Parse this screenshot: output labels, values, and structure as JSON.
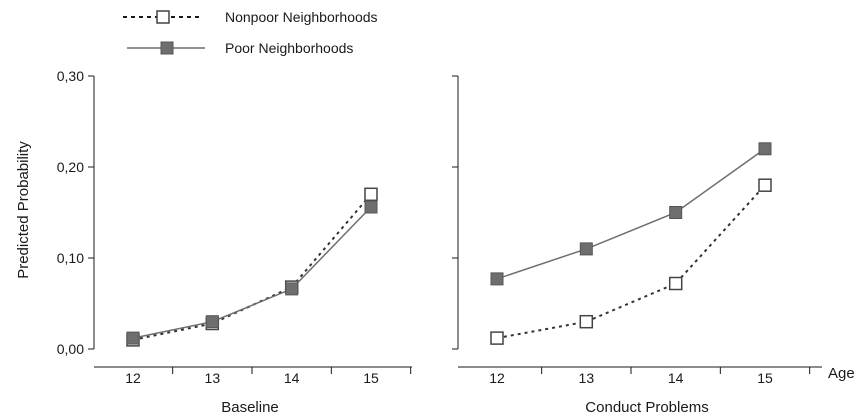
{
  "chart_data": {
    "type": "line",
    "ylabel": "Predicted Probability",
    "xlabel": "Age",
    "legend": {
      "placement": "top-left",
      "entries": [
        "Nonpoor Neighborhoods",
        "Poor Neighborhoods"
      ]
    },
    "x_ticks": [
      "12",
      "13",
      "14",
      "15"
    ],
    "y_ticks": [
      "0,00",
      "0,10",
      "0,20",
      "0,30"
    ],
    "ylim": [
      0,
      0.3
    ],
    "grid": false,
    "colors": {
      "poor": "#6e6e6e",
      "nonpoor": "#333333"
    },
    "panels": [
      {
        "title": "Baseline",
        "x": [
          12,
          13,
          14,
          15
        ],
        "series": [
          {
            "name": "Nonpoor Neighborhoods",
            "values": [
              0.01,
              0.028,
              0.068,
              0.17
            ]
          },
          {
            "name": "Poor Neighborhoods",
            "values": [
              0.012,
              0.03,
              0.066,
              0.156
            ]
          }
        ]
      },
      {
        "title": "Conduct Problems",
        "x": [
          12,
          13,
          14,
          15
        ],
        "series": [
          {
            "name": "Nonpoor Neighborhoods",
            "values": [
              0.012,
              0.03,
              0.072,
              0.18
            ]
          },
          {
            "name": "Poor Neighborhoods",
            "values": [
              0.077,
              0.11,
              0.15,
              0.22
            ]
          }
        ]
      }
    ]
  }
}
